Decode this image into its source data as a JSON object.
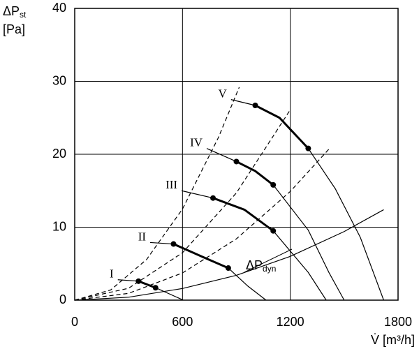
{
  "chart_data": {
    "type": "line",
    "y_label": "ΔP",
    "y_label_sub": "st",
    "y_unit": "[Pa]",
    "x_label": "V̇ [m³/h]",
    "xlim": [
      0,
      1800
    ],
    "xticks": [
      0,
      600,
      1200,
      1800
    ],
    "ylim": [
      0,
      40
    ],
    "yticks": [
      0,
      10,
      20,
      30,
      40
    ],
    "grid": true,
    "color": "#000000",
    "series": [
      {
        "name": "I",
        "style": "solid",
        "x": [
          240,
          355,
          450,
          605
        ],
        "values": [
          2.8,
          2.6,
          1.7,
          0
        ]
      },
      {
        "name": "II",
        "style": "solid",
        "x": [
          420,
          550,
          715,
          855,
          965,
          1065
        ],
        "values": [
          7.9,
          7.7,
          5.9,
          4.4,
          1.9,
          0
        ]
      },
      {
        "name": "III",
        "style": "solid",
        "x": [
          595,
          770,
          945,
          1105,
          1300,
          1400
        ],
        "values": [
          15.0,
          14.0,
          12.4,
          9.5,
          3.8,
          0
        ]
      },
      {
        "name": "IV",
        "style": "solid",
        "x": [
          735,
          900,
          1005,
          1105,
          1300,
          1415,
          1500
        ],
        "values": [
          20.8,
          19.0,
          17.7,
          15.8,
          9.6,
          3.8,
          0
        ]
      },
      {
        "name": "V",
        "style": "solid",
        "x": [
          870,
          1005,
          1140,
          1300,
          1450,
          1590,
          1720
        ],
        "values": [
          27.5,
          26.7,
          25.0,
          20.8,
          15.3,
          8.6,
          0
        ]
      },
      {
        "style": "bold",
        "markers": "ends",
        "x": [
          355,
          450
        ],
        "values": [
          2.6,
          1.7
        ]
      },
      {
        "style": "bold",
        "markers": "ends",
        "x": [
          550,
          715,
          855
        ],
        "values": [
          7.7,
          5.9,
          4.4
        ]
      },
      {
        "style": "bold",
        "markers": "ends",
        "x": [
          770,
          945,
          1105
        ],
        "values": [
          14.0,
          12.4,
          9.5
        ]
      },
      {
        "style": "bold",
        "markers": "ends",
        "x": [
          900,
          1005,
          1105
        ],
        "values": [
          19.0,
          17.7,
          15.8
        ]
      },
      {
        "style": "bold",
        "markers": "ends",
        "x": [
          1005,
          1140,
          1300
        ],
        "values": [
          26.7,
          25.0,
          20.8
        ]
      },
      {
        "style": "dashed",
        "x": [
          0,
          200,
          400,
          600,
          800,
          916
        ],
        "values": [
          0,
          1.39,
          5.57,
          12.5,
          22.3,
          29.2
        ]
      },
      {
        "style": "dashed",
        "x": [
          0,
          300,
          600,
          900,
          1200
        ],
        "values": [
          0,
          1.63,
          6.5,
          14.7,
          26.1
        ]
      },
      {
        "style": "dashed",
        "x": [
          0,
          300,
          600,
          900,
          1200,
          1415
        ],
        "values": [
          0,
          0.93,
          3.73,
          8.4,
          14.9,
          20.7
        ]
      },
      {
        "name": "ΔP",
        "name_sub": "dyn",
        "style": "solid",
        "x": [
          0,
          300,
          600,
          900,
          1200,
          1500,
          1720
        ],
        "values": [
          0,
          0.4,
          1.6,
          3.4,
          6.0,
          9.4,
          12.4
        ]
      }
    ]
  }
}
